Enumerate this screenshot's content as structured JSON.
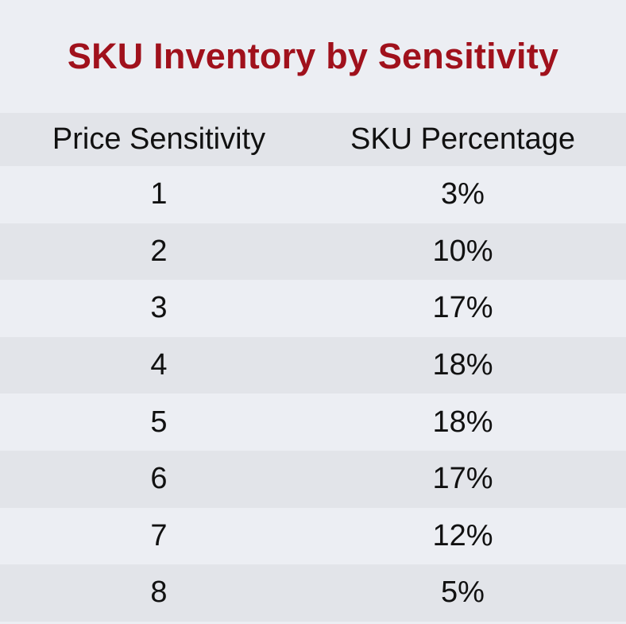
{
  "chart_data": {
    "type": "table",
    "title": "SKU Inventory by Sensitivity",
    "columns": [
      "Price Sensitivity",
      "SKU Percentage"
    ],
    "rows": [
      [
        "1",
        "3%"
      ],
      [
        "2",
        "10%"
      ],
      [
        "3",
        "17%"
      ],
      [
        "4",
        "18%"
      ],
      [
        "5",
        "18%"
      ],
      [
        "6",
        "17%"
      ],
      [
        "7",
        "12%"
      ],
      [
        "8",
        "5%"
      ]
    ],
    "colors": {
      "title": "#a0111c",
      "text": "#111111",
      "background": "#eceef3",
      "stripe": "#e2e4e9"
    }
  }
}
